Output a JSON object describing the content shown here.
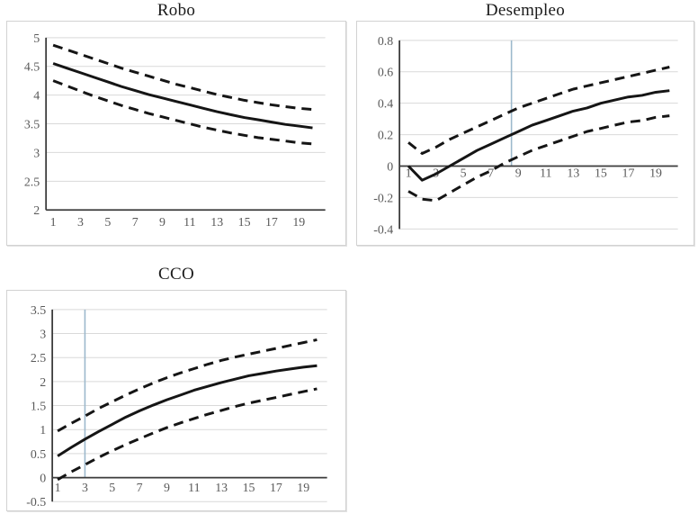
{
  "page": {
    "background": "#ffffff"
  },
  "colors": {
    "series_line": "#151515",
    "grid": "#d9d9d9",
    "axis": "#3b3b3b",
    "tick_text": "#595959",
    "title_text": "#1a1a1a",
    "marker_line": "#9cb8cc",
    "panel_border": "#d2d2d2"
  },
  "chart_data": [
    {
      "id": "robo",
      "type": "line",
      "title": "Robo",
      "x": [
        1,
        2,
        3,
        4,
        5,
        6,
        7,
        8,
        9,
        10,
        11,
        12,
        13,
        14,
        15,
        16,
        17,
        18,
        19,
        20
      ],
      "x_tick_labels": [
        "1",
        "3",
        "5",
        "7",
        "9",
        "11",
        "13",
        "15",
        "17",
        "19"
      ],
      "x_tick_values": [
        1,
        3,
        5,
        7,
        9,
        11,
        13,
        15,
        17,
        19
      ],
      "ylim": [
        2,
        5
      ],
      "y_tick_values": [
        5,
        4.5,
        4,
        3.5,
        3,
        2.5,
        2
      ],
      "y_tick_labels": [
        "5",
        "4.5",
        "4",
        "3.5",
        "3",
        "2.5",
        "2"
      ],
      "xaxis_at": 2,
      "vline_x": null,
      "grid": true,
      "legend": "none",
      "series": [
        {
          "name": "upper-band",
          "style": "dashed",
          "values": [
            4.87,
            4.79,
            4.71,
            4.63,
            4.55,
            4.47,
            4.4,
            4.33,
            4.26,
            4.19,
            4.13,
            4.07,
            4.01,
            3.96,
            3.91,
            3.87,
            3.83,
            3.8,
            3.77,
            3.75
          ]
        },
        {
          "name": "central",
          "style": "solid",
          "values": [
            4.55,
            4.47,
            4.39,
            4.31,
            4.23,
            4.15,
            4.08,
            4.01,
            3.95,
            3.89,
            3.83,
            3.77,
            3.71,
            3.66,
            3.61,
            3.57,
            3.53,
            3.49,
            3.46,
            3.43
          ]
        },
        {
          "name": "lower-band",
          "style": "dashed",
          "values": [
            4.25,
            4.16,
            4.07,
            3.98,
            3.9,
            3.82,
            3.75,
            3.68,
            3.62,
            3.56,
            3.5,
            3.44,
            3.39,
            3.34,
            3.3,
            3.26,
            3.23,
            3.2,
            3.17,
            3.15
          ]
        }
      ]
    },
    {
      "id": "desempleo",
      "type": "line",
      "title": "Desempleo",
      "x": [
        1,
        2,
        3,
        4,
        5,
        6,
        7,
        8,
        9,
        10,
        11,
        12,
        13,
        14,
        15,
        16,
        17,
        18,
        19,
        20
      ],
      "x_tick_labels": [
        "1",
        "3",
        "5",
        "7",
        "9",
        "11",
        "13",
        "15",
        "17",
        "19"
      ],
      "x_tick_values": [
        1,
        3,
        5,
        7,
        9,
        11,
        13,
        15,
        17,
        19
      ],
      "ylim": [
        -0.4,
        0.8
      ],
      "y_tick_values": [
        0.8,
        0.6,
        0.4,
        0.2,
        0,
        -0.2,
        -0.4
      ],
      "y_tick_labels": [
        "0.8",
        "0.6",
        "0.4",
        "0.2",
        "0",
        "-0.2",
        "-0.4"
      ],
      "xaxis_at": 0,
      "vline_x": 8.5,
      "grid": true,
      "legend": "none",
      "series": [
        {
          "name": "upper-band",
          "style": "dashed",
          "values": [
            0.15,
            0.08,
            0.12,
            0.17,
            0.21,
            0.25,
            0.29,
            0.33,
            0.37,
            0.4,
            0.43,
            0.46,
            0.49,
            0.51,
            0.53,
            0.55,
            0.57,
            0.59,
            0.61,
            0.63
          ]
        },
        {
          "name": "central",
          "style": "solid",
          "values": [
            0.0,
            -0.09,
            -0.05,
            0.0,
            0.05,
            0.1,
            0.14,
            0.18,
            0.22,
            0.26,
            0.29,
            0.32,
            0.35,
            0.37,
            0.4,
            0.42,
            0.44,
            0.45,
            0.47,
            0.48
          ]
        },
        {
          "name": "lower-band",
          "style": "dashed",
          "values": [
            -0.16,
            -0.21,
            -0.22,
            -0.17,
            -0.12,
            -0.07,
            -0.03,
            0.02,
            0.06,
            0.1,
            0.13,
            0.16,
            0.19,
            0.22,
            0.24,
            0.26,
            0.28,
            0.29,
            0.31,
            0.32
          ]
        }
      ]
    },
    {
      "id": "cco",
      "type": "line",
      "title": "CCO",
      "x": [
        1,
        2,
        3,
        4,
        5,
        6,
        7,
        8,
        9,
        10,
        11,
        12,
        13,
        14,
        15,
        16,
        17,
        18,
        19,
        20
      ],
      "x_tick_labels": [
        "1",
        "3",
        "5",
        "7",
        "9",
        "11",
        "13",
        "15",
        "17",
        "19"
      ],
      "x_tick_values": [
        1,
        3,
        5,
        7,
        9,
        11,
        13,
        15,
        17,
        19
      ],
      "ylim": [
        -0.5,
        3.5
      ],
      "y_tick_values": [
        3.5,
        3,
        2.5,
        2,
        1.5,
        1,
        0.5,
        0,
        -0.5
      ],
      "y_tick_labels": [
        "3.5",
        "3",
        "2.5",
        "2",
        "1.5",
        "1",
        "0.5",
        "0",
        "-0.5"
      ],
      "xaxis_at": 0,
      "vline_x": 3,
      "grid": true,
      "legend": "none",
      "series": [
        {
          "name": "upper-band",
          "style": "dashed",
          "values": [
            0.97,
            1.13,
            1.28,
            1.44,
            1.58,
            1.72,
            1.85,
            1.97,
            2.08,
            2.18,
            2.27,
            2.36,
            2.44,
            2.51,
            2.57,
            2.63,
            2.69,
            2.75,
            2.81,
            2.87
          ]
        },
        {
          "name": "central",
          "style": "solid",
          "values": [
            0.45,
            0.63,
            0.8,
            0.96,
            1.11,
            1.26,
            1.39,
            1.51,
            1.62,
            1.72,
            1.82,
            1.9,
            1.98,
            2.05,
            2.12,
            2.17,
            2.22,
            2.26,
            2.3,
            2.33
          ]
        },
        {
          "name": "lower-band",
          "style": "dashed",
          "values": [
            -0.04,
            0.12,
            0.27,
            0.42,
            0.56,
            0.69,
            0.81,
            0.93,
            1.04,
            1.14,
            1.23,
            1.32,
            1.4,
            1.48,
            1.55,
            1.61,
            1.67,
            1.73,
            1.79,
            1.85
          ]
        }
      ]
    }
  ]
}
